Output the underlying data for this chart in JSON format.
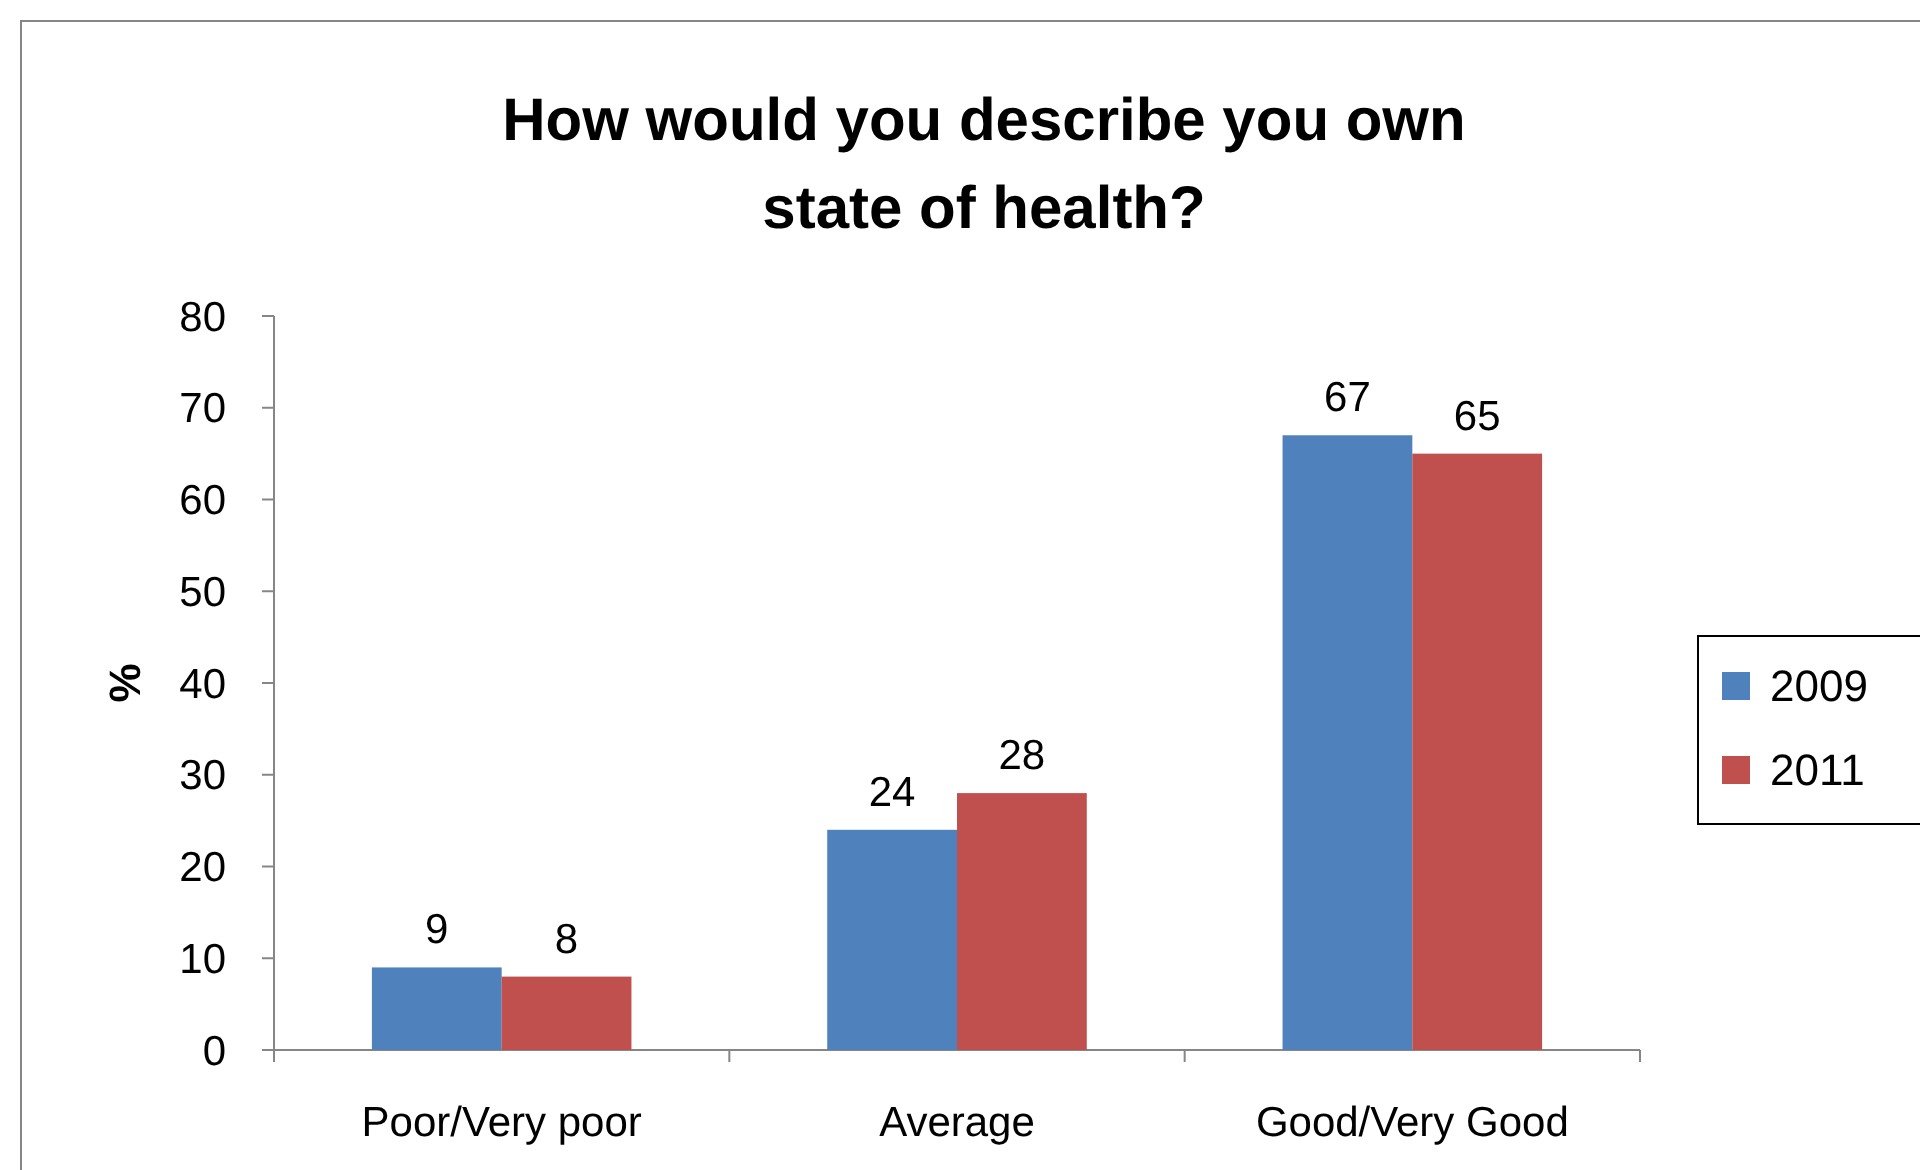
{
  "chart_data": {
    "type": "bar",
    "title": "How would you describe you own\nstate of health?",
    "ylabel": "%",
    "categories": [
      "Poor/Very poor",
      "Average",
      "Good/Very Good"
    ],
    "series": [
      {
        "name": "2009",
        "color": "#4f81bd",
        "values": [
          9,
          24,
          67
        ]
      },
      {
        "name": "2011",
        "color": "#c0504d",
        "values": [
          8,
          28,
          65
        ]
      }
    ],
    "ylim": [
      0,
      80
    ],
    "yticks": [
      0,
      10,
      20,
      30,
      40,
      50,
      60,
      70,
      80
    ],
    "data_labels": true,
    "legend": "right",
    "grid": false
  }
}
